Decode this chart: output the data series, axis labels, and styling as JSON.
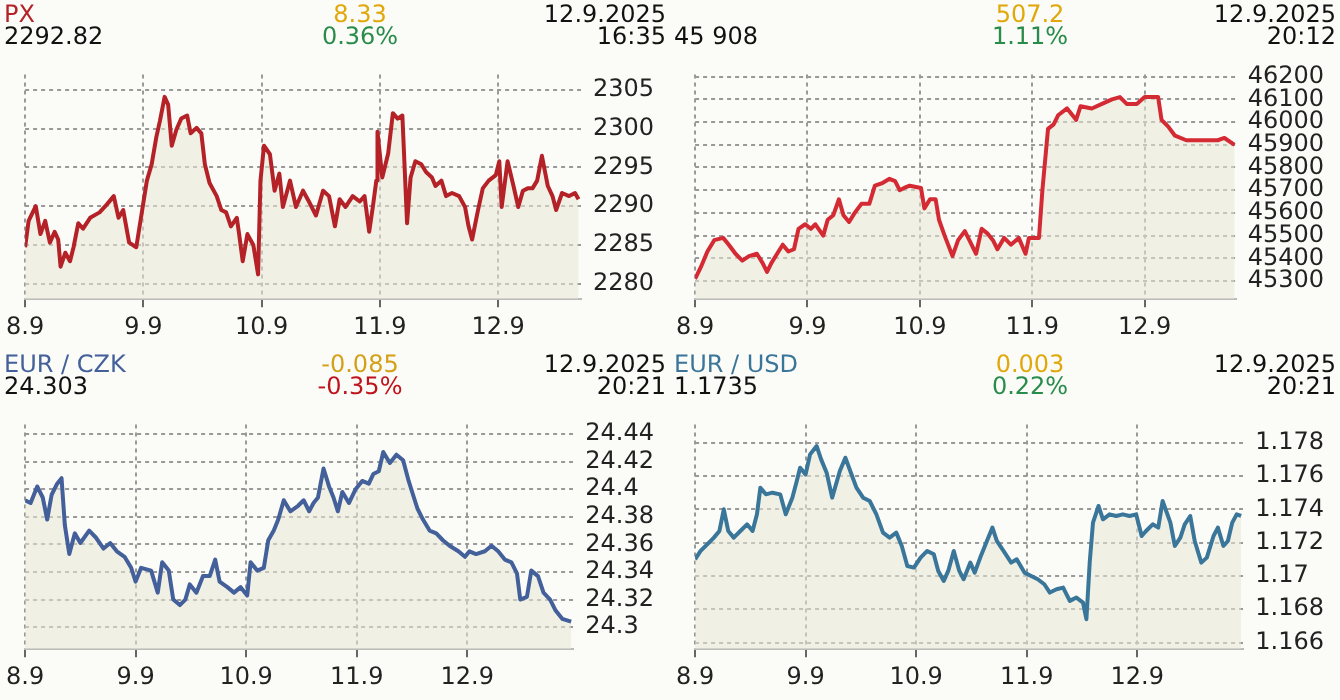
{
  "chart_data": [
    {
      "type": "area",
      "title": "PX",
      "annotations": [
        "2292.82",
        "8.33",
        "0.36%",
        "12.9.2025",
        "16:35"
      ],
      "grid": true,
      "xlim": [
        "2025-09-08T00:00",
        "2025-09-12T16:48"
      ],
      "xticks": [
        {
          "value": "2025-09-08",
          "label": "8.9"
        },
        {
          "value": "2025-09-09",
          "label": "9.9"
        },
        {
          "value": "2025-09-10",
          "label": "10.9"
        },
        {
          "value": "2025-09-11",
          "label": "11.9"
        },
        {
          "value": "2025-09-12",
          "label": "12.9"
        }
      ],
      "ylim": [
        2278,
        2307
      ],
      "yticks": [
        2280,
        2285,
        2290,
        2295,
        2300,
        2305
      ],
      "x": [
        "2025-09-08T00:00",
        "2025-09-08T00:43",
        "2025-09-08T02:10",
        "2025-09-08T03:07",
        "2025-09-08T04:05",
        "2025-09-08T05:02",
        "2025-09-08T06:00",
        "2025-09-08T06:43",
        "2025-09-08T07:12",
        "2025-09-08T08:10",
        "2025-09-08T09:07",
        "2025-09-08T09:50",
        "2025-09-08T10:48",
        "2025-09-08T11:46",
        "2025-09-08T13:12",
        "2025-09-08T15:07",
        "2025-09-08T16:34",
        "2025-09-08T18:00",
        "2025-09-08T18:58",
        "2025-09-08T19:55",
        "2025-09-08T21:07",
        "2025-09-08T22:34",
        "2025-09-08T23:46",
        "2025-09-09T00:43",
        "2025-09-09T01:41",
        "2025-09-09T02:38",
        "2025-09-09T03:22",
        "2025-09-09T04:19",
        "2025-09-09T05:02",
        "2025-09-09T05:46",
        "2025-09-09T06:43",
        "2025-09-09T07:41",
        "2025-09-09T08:53",
        "2025-09-09T09:36",
        "2025-09-09T10:48",
        "2025-09-09T11:46",
        "2025-09-09T12:29",
        "2025-09-09T13:26",
        "2025-09-09T14:53",
        "2025-09-09T15:50",
        "2025-09-09T16:48",
        "2025-09-09T17:46",
        "2025-09-09T18:58",
        "2025-09-09T19:26",
        "2025-09-09T20:10",
        "2025-09-09T21:07",
        "2025-09-09T22:19",
        "2025-09-09T23:17",
        "2025-09-09T23:46",
        "2025-09-10T00:29",
        "2025-09-10T01:41",
        "2025-09-10T02:38",
        "2025-09-10T03:36",
        "2025-09-10T04:19",
        "2025-09-10T05:46",
        "2025-09-10T06:58",
        "2025-09-10T08:24",
        "2025-09-10T09:36",
        "2025-09-10T11:02",
        "2025-09-10T12:29",
        "2025-09-10T13:41",
        "2025-09-10T14:53",
        "2025-09-10T15:50",
        "2025-09-10T17:02",
        "2025-09-10T18:29",
        "2025-09-10T19:55",
        "2025-09-10T20:53",
        "2025-09-10T21:50",
        "2025-09-10T22:34",
        "2025-09-10T23:17",
        "2025-09-10T23:31",
        "2025-09-11T00:29",
        "2025-09-11T01:41",
        "2025-09-11T02:38",
        "2025-09-11T03:36",
        "2025-09-11T04:34",
        "2025-09-11T05:31",
        "2025-09-11T06:14",
        "2025-09-11T07:12",
        "2025-09-11T08:24",
        "2025-09-11T09:22",
        "2025-09-11T10:34",
        "2025-09-11T11:17",
        "2025-09-11T12:29",
        "2025-09-11T13:26",
        "2025-09-11T14:38",
        "2025-09-11T16:05",
        "2025-09-11T17:17",
        "2025-09-11T18:00",
        "2025-09-11T18:43",
        "2025-09-11T19:55",
        "2025-09-11T20:53",
        "2025-09-11T22:05",
        "2025-09-11T23:31",
        "2025-09-12T00:14",
        "2025-09-12T00:43",
        "2025-09-12T01:55",
        "2025-09-12T03:07",
        "2025-09-12T04:05",
        "2025-09-12T05:02",
        "2025-09-12T06:00",
        "2025-09-12T06:58",
        "2025-09-12T07:55",
        "2025-09-12T08:53",
        "2025-09-12T10:05",
        "2025-09-12T11:02",
        "2025-09-12T11:46",
        "2025-09-12T12:58",
        "2025-09-12T14:24",
        "2025-09-12T15:36",
        "2025-09-12T16:19"
      ],
      "series": [
        {
          "color": "#b42228",
          "values": [
            2284.7,
            2288.1,
            2290.0,
            2286.4,
            2288.1,
            2285.3,
            2286.7,
            2285.7,
            2282.2,
            2284.0,
            2282.9,
            2284.7,
            2287.8,
            2287.1,
            2288.5,
            2289.2,
            2290.2,
            2291.3,
            2288.5,
            2289.5,
            2285.3,
            2284.7,
            2289.5,
            2293.3,
            2295.4,
            2298.9,
            2301.0,
            2304.1,
            2303.1,
            2297.8,
            2299.9,
            2301.3,
            2301.7,
            2299.4,
            2300.1,
            2299.4,
            2295.4,
            2293.0,
            2291.3,
            2289.5,
            2289.2,
            2287.4,
            2288.5,
            2286.4,
            2282.9,
            2286.4,
            2285.0,
            2281.2,
            2293.3,
            2297.8,
            2296.7,
            2292.0,
            2294.2,
            2289.9,
            2293.3,
            2289.9,
            2292.0,
            2290.6,
            2288.8,
            2292.0,
            2291.3,
            2287.4,
            2290.9,
            2289.9,
            2291.3,
            2290.6,
            2291.3,
            2286.7,
            2289.9,
            2293.3,
            2299.6,
            2293.7,
            2296.8,
            2302.0,
            2301.3,
            2301.7,
            2287.8,
            2293.7,
            2295.8,
            2295.4,
            2294.4,
            2293.7,
            2292.6,
            2293.3,
            2291.3,
            2291.7,
            2291.3,
            2289.9,
            2287.4,
            2285.7,
            2289.5,
            2292.3,
            2293.3,
            2294.0,
            2295.8,
            2289.9,
            2295.8,
            2292.6,
            2289.9,
            2292.0,
            2292.3,
            2292.3,
            2293.3,
            2296.5,
            2292.6,
            2291.3,
            2289.5,
            2291.7,
            2291.3,
            2291.7,
            2290.9
          ]
        }
      ]
    },
    {
      "type": "area",
      "annotations": [
        "45 908",
        "507.2",
        "1.11%",
        "12.9.2025",
        "20:12"
      ],
      "grid": true,
      "xlim": [
        "2025-09-08T00:00",
        "2025-09-12T19:26"
      ],
      "xticks": [
        {
          "value": "2025-09-08",
          "label": "8.9"
        },
        {
          "value": "2025-09-09",
          "label": "9.9"
        },
        {
          "value": "2025-09-10",
          "label": "10.9"
        },
        {
          "value": "2025-09-11",
          "label": "11.9"
        },
        {
          "value": "2025-09-12",
          "label": "12.9"
        }
      ],
      "ylim": [
        45220,
        46210
      ],
      "yticks": [
        45300,
        45400,
        45500,
        45600,
        45700,
        45800,
        45900,
        46000,
        46100,
        46200
      ],
      "x": [
        "2025-09-08T00:00",
        "2025-09-08T01:12",
        "2025-09-08T02:38",
        "2025-09-08T04:05",
        "2025-09-08T06:00",
        "2025-09-08T07:12",
        "2025-09-08T08:38",
        "2025-09-08T10:05",
        "2025-09-08T11:31",
        "2025-09-08T13:12",
        "2025-09-08T14:24",
        "2025-09-08T15:22",
        "2025-09-08T16:19",
        "2025-09-08T17:31",
        "2025-09-08T18:43",
        "2025-09-08T19:55",
        "2025-09-08T21:07",
        "2025-09-08T22:05",
        "2025-09-08T23:31",
        "2025-09-09T00:43",
        "2025-09-09T01:41",
        "2025-09-09T03:22",
        "2025-09-09T04:19",
        "2025-09-09T05:31",
        "2025-09-09T06:43",
        "2025-09-09T07:41",
        "2025-09-09T08:53",
        "2025-09-09T10:05",
        "2025-09-09T11:31",
        "2025-09-09T13:12",
        "2025-09-09T14:24",
        "2025-09-09T15:50",
        "2025-09-09T17:31",
        "2025-09-09T18:43",
        "2025-09-09T19:41",
        "2025-09-09T20:38",
        "2025-09-09T21:50",
        "2025-09-10T00:14",
        "2025-09-10T00:58",
        "2025-09-10T02:10",
        "2025-09-10T03:22",
        "2025-09-10T04:05",
        "2025-09-10T05:17",
        "2025-09-10T06:58",
        "2025-09-10T08:10",
        "2025-09-10T09:36",
        "2025-09-10T10:34",
        "2025-09-10T12:00",
        "2025-09-10T13:12",
        "2025-09-10T14:24",
        "2025-09-10T15:36",
        "2025-09-10T16:34",
        "2025-09-10T18:00",
        "2025-09-10T19:26",
        "2025-09-10T21:07",
        "2025-09-10T22:34",
        "2025-09-10T23:17",
        "2025-09-11T01:26",
        "2025-09-11T02:10",
        "2025-09-11T03:22",
        "2025-09-11T04:34",
        "2025-09-11T05:31",
        "2025-09-11T07:26",
        "2025-09-11T09:22",
        "2025-09-11T10:19",
        "2025-09-11T12:43",
        "2025-09-11T14:53",
        "2025-09-11T17:02",
        "2025-09-11T18:43",
        "2025-09-11T20:10",
        "2025-09-11T22:19",
        "2025-09-12T00:00",
        "2025-09-12T02:53",
        "2025-09-12T03:36",
        "2025-09-12T05:02",
        "2025-09-12T06:29",
        "2025-09-12T08:53",
        "2025-09-12T11:02",
        "2025-09-12T13:12",
        "2025-09-12T15:36",
        "2025-09-12T17:02",
        "2025-09-12T19:12"
      ],
      "series": [
        {
          "color": "#d42a34",
          "values": [
            45310,
            45360,
            45430,
            45480,
            45490,
            45460,
            45420,
            45390,
            45410,
            45420,
            45380,
            45340,
            45380,
            45420,
            45460,
            45430,
            45440,
            45530,
            45550,
            45530,
            45550,
            45500,
            45570,
            45590,
            45660,
            45590,
            45560,
            45600,
            45640,
            45640,
            45720,
            45730,
            45750,
            45740,
            45700,
            45710,
            45720,
            45710,
            45620,
            45660,
            45660,
            45570,
            45500,
            45410,
            45480,
            45520,
            45480,
            45420,
            45530,
            45510,
            45480,
            45440,
            45490,
            45460,
            45490,
            45420,
            45490,
            45490,
            45700,
            45970,
            45990,
            46030,
            46060,
            46010,
            46070,
            46060,
            46080,
            46100,
            46110,
            46080,
            46080,
            46110,
            46110,
            46010,
            45980,
            45940,
            45920,
            45920,
            45920,
            45920,
            45930,
            45900
          ]
        }
      ]
    },
    {
      "type": "area",
      "title": "EUR / CZK",
      "annotations": [
        "24.303",
        "-0.085",
        "-0.35%",
        "12.9.2025",
        "20:21"
      ],
      "grid": true,
      "xlim": [
        "2025-09-08T00:00",
        "2025-09-12T23:02"
      ],
      "xticks": [
        {
          "value": "2025-09-08",
          "label": "8.9"
        },
        {
          "value": "2025-09-09",
          "label": "9.9"
        },
        {
          "value": "2025-09-10",
          "label": "10.9"
        },
        {
          "value": "2025-09-11",
          "label": "11.9"
        },
        {
          "value": "2025-09-12",
          "label": "12.9"
        }
      ],
      "ylim": [
        24.284,
        24.447
      ],
      "yticks": [
        24.3,
        24.32,
        24.34,
        24.36,
        24.38,
        24.4,
        24.42,
        24.44
      ],
      "x": [
        "2025-09-08T00:00",
        "2025-09-08T01:12",
        "2025-09-08T02:38",
        "2025-09-08T03:50",
        "2025-09-08T04:48",
        "2025-09-08T05:46",
        "2025-09-08T06:58",
        "2025-09-08T07:55",
        "2025-09-08T08:38",
        "2025-09-08T09:36",
        "2025-09-08T10:48",
        "2025-09-08T12:00",
        "2025-09-08T13:55",
        "2025-09-08T15:22",
        "2025-09-08T17:02",
        "2025-09-08T18:29",
        "2025-09-08T19:55",
        "2025-09-08T21:36",
        "2025-09-08T23:02",
        "2025-09-09T00:00",
        "2025-09-09T01:12",
        "2025-09-09T03:22",
        "2025-09-09T04:48",
        "2025-09-09T05:46",
        "2025-09-09T07:12",
        "2025-09-09T08:10",
        "2025-09-09T09:36",
        "2025-09-09T10:48",
        "2025-09-09T11:46",
        "2025-09-09T13:12",
        "2025-09-09T14:38",
        "2025-09-09T16:05",
        "2025-09-09T17:17",
        "2025-09-09T18:14",
        "2025-09-09T19:55",
        "2025-09-09T21:22",
        "2025-09-09T22:48",
        "2025-09-10T00:14",
        "2025-09-10T00:58",
        "2025-09-10T02:24",
        "2025-09-10T03:50",
        "2025-09-10T04:48",
        "2025-09-10T06:00",
        "2025-09-10T06:58",
        "2025-09-10T08:10",
        "2025-09-10T09:36",
        "2025-09-10T11:17",
        "2025-09-10T12:29",
        "2025-09-10T13:41",
        "2025-09-10T14:38",
        "2025-09-10T15:36",
        "2025-09-10T16:48",
        "2025-09-10T18:00",
        "2025-09-10T18:58",
        "2025-09-10T19:55",
        "2025-09-10T20:53",
        "2025-09-10T22:19",
        "2025-09-10T23:46",
        "2025-09-11T01:12",
        "2025-09-11T02:38",
        "2025-09-11T03:36",
        "2025-09-11T04:48",
        "2025-09-11T05:46",
        "2025-09-11T07:12",
        "2025-09-11T08:38",
        "2025-09-11T10:05",
        "2025-09-11T11:17",
        "2025-09-11T12:14",
        "2025-09-11T13:12",
        "2025-09-11T14:24",
        "2025-09-11T15:50",
        "2025-09-11T17:17",
        "2025-09-11T18:43",
        "2025-09-11T20:10",
        "2025-09-11T22:05",
        "2025-09-11T23:31",
        "2025-09-12T00:29",
        "2025-09-12T01:55",
        "2025-09-12T03:50",
        "2025-09-12T05:17",
        "2025-09-12T06:43",
        "2025-09-12T08:10",
        "2025-09-12T09:36",
        "2025-09-12T10:48",
        "2025-09-12T11:31",
        "2025-09-12T12:58",
        "2025-09-12T13:55",
        "2025-09-12T15:22",
        "2025-09-12T16:34",
        "2025-09-12T18:00",
        "2025-09-12T19:12",
        "2025-09-12T20:38",
        "2025-09-12T22:34"
      ],
      "series": [
        {
          "color": "#43609a",
          "values": [
            24.392,
            24.39,
            24.402,
            24.394,
            24.378,
            24.396,
            24.404,
            24.408,
            24.374,
            24.353,
            24.368,
            24.361,
            24.37,
            24.365,
            24.357,
            24.361,
            24.355,
            24.351,
            24.343,
            24.333,
            24.343,
            24.341,
            24.325,
            24.347,
            24.341,
            24.32,
            24.316,
            24.32,
            24.331,
            24.325,
            24.337,
            24.337,
            24.349,
            24.333,
            24.329,
            24.325,
            24.329,
            24.323,
            24.347,
            24.341,
            24.343,
            24.363,
            24.37,
            24.378,
            24.392,
            24.384,
            24.388,
            24.392,
            24.384,
            24.39,
            24.394,
            24.415,
            24.402,
            24.394,
            24.384,
            24.398,
            24.39,
            24.4,
            24.406,
            24.404,
            24.411,
            24.413,
            24.427,
            24.419,
            24.425,
            24.421,
            24.406,
            24.396,
            24.386,
            24.378,
            24.37,
            24.368,
            24.363,
            24.359,
            24.355,
            24.351,
            24.355,
            24.353,
            24.355,
            24.359,
            24.355,
            24.349,
            24.347,
            24.339,
            24.32,
            24.322,
            24.341,
            24.337,
            24.325,
            24.32,
            24.312,
            24.306,
            24.304
          ]
        }
      ]
    },
    {
      "type": "area",
      "title": "EUR / USD",
      "annotations": [
        "1.1735",
        "0.003",
        "0.22%",
        "12.9.2025",
        "20:21"
      ],
      "grid": true,
      "xlim": [
        "2025-09-08T00:00",
        "2025-09-12T23:02"
      ],
      "xticks": [
        {
          "value": "2025-09-08",
          "label": "8.9"
        },
        {
          "value": "2025-09-09",
          "label": "9.9"
        },
        {
          "value": "2025-09-10",
          "label": "10.9"
        },
        {
          "value": "2025-09-11",
          "label": "11.9"
        },
        {
          "value": "2025-09-12",
          "label": "12.9"
        }
      ],
      "ylim": [
        1.1656,
        1.1791
      ],
      "yticks": [
        1.166,
        1.168,
        1.17,
        1.172,
        1.174,
        1.176,
        1.178
      ],
      "x": [
        "2025-09-08T00:00",
        "2025-09-08T01:12",
        "2025-09-08T02:38",
        "2025-09-08T04:05",
        "2025-09-08T05:17",
        "2025-09-08T06:14",
        "2025-09-08T07:12",
        "2025-09-08T08:24",
        "2025-09-08T09:50",
        "2025-09-08T11:17",
        "2025-09-08T12:29",
        "2025-09-08T13:26",
        "2025-09-08T14:10",
        "2025-09-08T15:22",
        "2025-09-08T16:48",
        "2025-09-08T18:29",
        "2025-09-08T19:41",
        "2025-09-08T21:07",
        "2025-09-08T22:05",
        "2025-09-08T22:48",
        "2025-09-09T00:00",
        "2025-09-09T00:58",
        "2025-09-09T02:24",
        "2025-09-09T03:22",
        "2025-09-09T04:34",
        "2025-09-09T05:46",
        "2025-09-09T07:26",
        "2025-09-09T08:38",
        "2025-09-09T09:50",
        "2025-09-09T11:02",
        "2025-09-09T12:29",
        "2025-09-09T13:55",
        "2025-09-09T15:22",
        "2025-09-09T16:48",
        "2025-09-09T18:14",
        "2025-09-09T19:41",
        "2025-09-09T20:53",
        "2025-09-09T22:05",
        "2025-09-09T23:31",
        "2025-09-10T00:58",
        "2025-09-10T02:24",
        "2025-09-10T03:50",
        "2025-09-10T04:48",
        "2025-09-10T06:00",
        "2025-09-10T06:58",
        "2025-09-10T08:10",
        "2025-09-10T09:22",
        "2025-09-10T10:19",
        "2025-09-10T11:46",
        "2025-09-10T12:43",
        "2025-09-10T13:55",
        "2025-09-10T15:22",
        "2025-09-10T16:34",
        "2025-09-10T17:31",
        "2025-09-10T18:58",
        "2025-09-10T20:38",
        "2025-09-10T21:50",
        "2025-09-10T23:31",
        "2025-09-11T00:58",
        "2025-09-11T02:24",
        "2025-09-11T03:50",
        "2025-09-11T05:02",
        "2025-09-11T06:29",
        "2025-09-11T07:55",
        "2025-09-11T09:22",
        "2025-09-11T10:48",
        "2025-09-11T12:14",
        "2025-09-11T12:58",
        "2025-09-11T13:41",
        "2025-09-11T14:24",
        "2025-09-11T15:36",
        "2025-09-11T16:34",
        "2025-09-11T18:00",
        "2025-09-11T19:26",
        "2025-09-11T20:53",
        "2025-09-11T22:19",
        "2025-09-11T23:46",
        "2025-09-12T00:58",
        "2025-09-12T01:55",
        "2025-09-12T03:22",
        "2025-09-12T04:34",
        "2025-09-12T05:31",
        "2025-09-12T07:12",
        "2025-09-12T08:10",
        "2025-09-12T09:22",
        "2025-09-12T10:19",
        "2025-09-12T11:31",
        "2025-09-12T12:29",
        "2025-09-12T13:55",
        "2025-09-12T15:07",
        "2025-09-12T16:34",
        "2025-09-12T17:31",
        "2025-09-12T18:43",
        "2025-09-12T19:41",
        "2025-09-12T20:38",
        "2025-09-12T21:36",
        "2025-09-12T22:34"
      ],
      "series": [
        {
          "color": "#3a7699",
          "values": [
            1.171,
            1.1715,
            1.1719,
            1.1723,
            1.1727,
            1.174,
            1.1727,
            1.1723,
            1.1727,
            1.1731,
            1.1727,
            1.1737,
            1.1753,
            1.1749,
            1.175,
            1.1749,
            1.1737,
            1.1747,
            1.1757,
            1.1765,
            1.1761,
            1.1773,
            1.1778,
            1.177,
            1.1762,
            1.1747,
            1.1763,
            1.1771,
            1.1762,
            1.1753,
            1.1747,
            1.1745,
            1.1737,
            1.1726,
            1.1723,
            1.1726,
            1.1718,
            1.1706,
            1.1705,
            1.1711,
            1.1715,
            1.1713,
            1.1703,
            1.1697,
            1.1703,
            1.1715,
            1.1703,
            1.1698,
            1.1708,
            1.1702,
            1.1711,
            1.1721,
            1.1729,
            1.1721,
            1.1715,
            1.1708,
            1.171,
            1.1702,
            1.17,
            1.1698,
            1.1695,
            1.169,
            1.1692,
            1.1693,
            1.1685,
            1.1687,
            1.1684,
            1.1674,
            1.1708,
            1.1732,
            1.1742,
            1.1734,
            1.1737,
            1.1736,
            1.1737,
            1.1736,
            1.1737,
            1.1724,
            1.1727,
            1.1731,
            1.1729,
            1.1745,
            1.1732,
            1.1718,
            1.1723,
            1.1731,
            1.1736,
            1.1721,
            1.1708,
            1.1711,
            1.1724,
            1.1729,
            1.1718,
            1.1721,
            1.1732,
            1.1737,
            1.1736
          ]
        }
      ]
    }
  ]
}
